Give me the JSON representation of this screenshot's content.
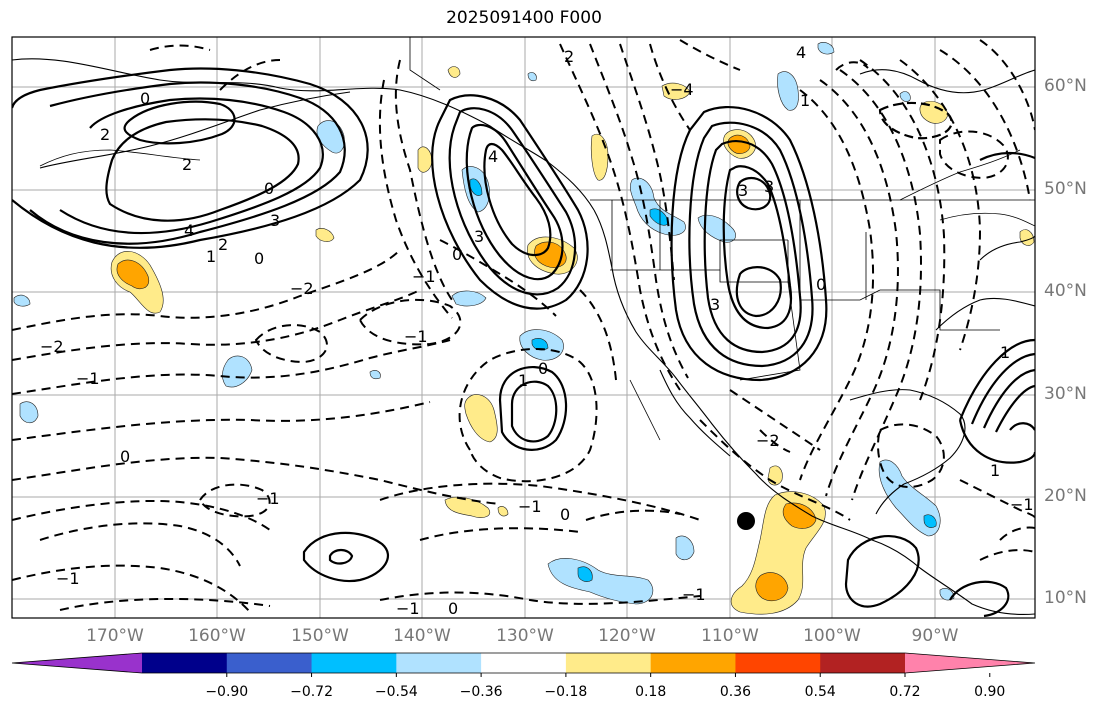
{
  "title": "2025091400 F000",
  "lat_labels": [
    "60°N",
    "50°N",
    "40°N",
    "30°N",
    "20°N",
    "10°N"
  ],
  "lon_labels": [
    "170°W",
    "160°W",
    "150°W",
    "140°W",
    "130°W",
    "120°W",
    "110°W",
    "100°W",
    "90°W"
  ],
  "colorbar": {
    "colors": [
      "#9932cc",
      "#00008b",
      "#3a5fcd",
      "#00bfff",
      "#b0e2ff",
      "#ffffff",
      "#ffeb8a",
      "#ffa500",
      "#ff4500",
      "#b22222",
      "#ff82ab"
    ],
    "tick_labels": [
      "−0.90",
      "−0.72",
      "−0.54",
      "−0.36",
      "−0.18",
      "0.18",
      "0.36",
      "0.54",
      "0.72",
      "0.90"
    ]
  },
  "contour_labels": [
    "0",
    "2",
    "4",
    "3",
    "2",
    "1",
    "0",
    "0",
    "2",
    "3",
    "4",
    "0",
    "1",
    "0",
    "3",
    "4",
    "1",
    "2",
    "3",
    "3",
    "0",
    "1",
    "−1",
    "−2",
    "−1",
    "−2",
    "−1",
    "0",
    "−1",
    "−1",
    "−1",
    "0",
    "−1",
    "0",
    "−1",
    "−2",
    "1",
    "−4",
    "−1"
  ]
}
